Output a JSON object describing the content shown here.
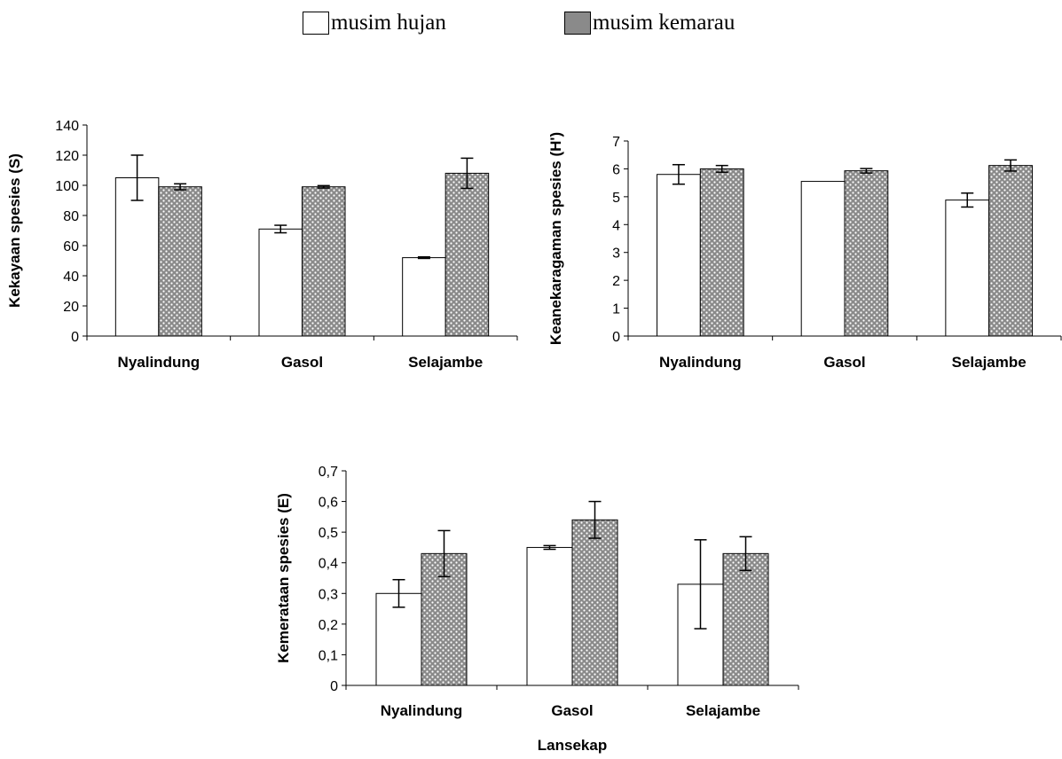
{
  "legend": {
    "hujan_label": "musim hujan",
    "kemarau_label": "musim kemarau"
  },
  "colors": {
    "hujan_fill": "#ffffff",
    "kemarau_fill": "#8a8a8a",
    "kemarau_dots": "#ffffff",
    "axis": "#000000"
  },
  "chart_data": [
    {
      "type": "bar",
      "ylabel": "Kekayaan spesies (S)",
      "xlabel": "",
      "categories": [
        "Nyalindung",
        "Gasol",
        "Selajambe"
      ],
      "ylim": [
        0,
        140
      ],
      "yticks": [
        0,
        20,
        40,
        60,
        80,
        100,
        120,
        140
      ],
      "ytick_labels": [
        "0",
        "20",
        "40",
        "60",
        "80",
        "100",
        "120",
        "140"
      ],
      "series": [
        {
          "name": "musim hujan",
          "values": [
            105,
            71,
            52
          ],
          "errors": [
            15,
            2.5,
            0.5
          ]
        },
        {
          "name": "musim kemarau",
          "values": [
            99,
            99,
            108
          ],
          "errors": [
            2,
            0.8,
            10
          ]
        }
      ]
    },
    {
      "type": "bar",
      "ylabel": "Keanekaragaman spesies (H')",
      "xlabel": "",
      "categories": [
        "Nyalindung",
        "Gasol",
        "Selajambe"
      ],
      "ylim": [
        0,
        7
      ],
      "yticks": [
        0,
        1,
        2,
        3,
        4,
        5,
        6,
        7
      ],
      "ytick_labels": [
        "0",
        "1",
        "2",
        "3",
        "4",
        "5",
        "6",
        "7"
      ],
      "series": [
        {
          "name": "musim hujan",
          "values": [
            5.8,
            5.55,
            4.88
          ],
          "errors": [
            0.35,
            0,
            0.25
          ]
        },
        {
          "name": "musim kemarau",
          "values": [
            6.0,
            5.93,
            6.12
          ],
          "errors": [
            0.12,
            0.08,
            0.2
          ]
        }
      ]
    },
    {
      "type": "bar",
      "ylabel": "Kemerataan spesies (E)",
      "xlabel": "Lansekap",
      "categories": [
        "Nyalindung",
        "Gasol",
        "Selajambe"
      ],
      "ylim": [
        0,
        0.7
      ],
      "yticks": [
        0,
        0.1,
        0.2,
        0.3,
        0.4,
        0.5,
        0.6,
        0.7
      ],
      "ytick_labels": [
        "0",
        "0,1",
        "0,2",
        "0,3",
        "0,4",
        "0,5",
        "0,6",
        "0,7"
      ],
      "series": [
        {
          "name": "musim hujan",
          "values": [
            0.3,
            0.45,
            0.33
          ],
          "errors": [
            0.045,
            0.006,
            0.145
          ]
        },
        {
          "name": "musim kemarau",
          "values": [
            0.43,
            0.54,
            0.43
          ],
          "errors": [
            0.075,
            0.06,
            0.055
          ]
        }
      ]
    }
  ]
}
